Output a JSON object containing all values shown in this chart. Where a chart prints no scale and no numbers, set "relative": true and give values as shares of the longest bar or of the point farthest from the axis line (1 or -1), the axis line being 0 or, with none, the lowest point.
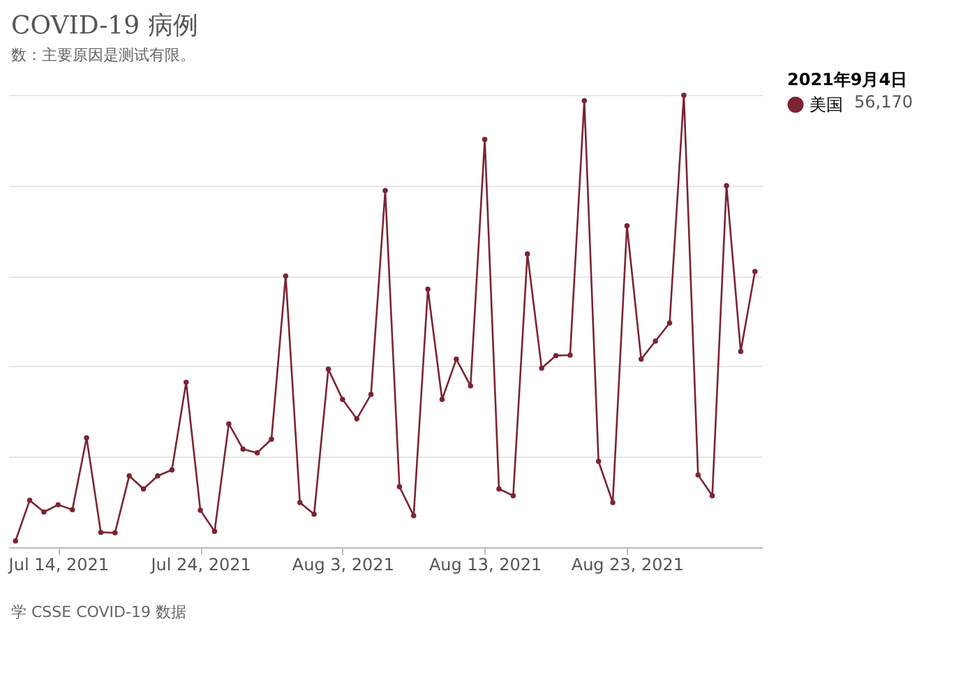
{
  "chart_data": {
    "type": "line",
    "title": "COVID-19 病例",
    "subtitle": "数：主要原因是测试有限。",
    "relative": true,
    "grid": "y",
    "legend": "top right",
    "legend_title": "2021年9月4日",
    "marker": "circle",
    "annotations": [
      "56,170",
      "学 CSSE COVID-19 数据"
    ],
    "xlim": [
      "2021-07-10T12:00",
      "2021-09-01T12:00"
    ],
    "xticks": [
      {
        "value": "2021-07-14",
        "label": "Jul 14, 2021"
      },
      {
        "value": "2021-07-24",
        "label": "Jul 24, 2021"
      },
      {
        "value": "2021-08-03",
        "label": "Aug 3, 2021"
      },
      {
        "value": "2021-08-13",
        "label": "Aug 13, 2021"
      },
      {
        "value": "2021-08-23",
        "label": "Aug 23, 2021"
      }
    ],
    "x": [
      "2021-07-11",
      "2021-07-12",
      "2021-07-13",
      "2021-07-14",
      "2021-07-15",
      "2021-07-16",
      "2021-07-17",
      "2021-07-18",
      "2021-07-19",
      "2021-07-20",
      "2021-07-21",
      "2021-07-22",
      "2021-07-23",
      "2021-07-24",
      "2021-07-25",
      "2021-07-26",
      "2021-07-27",
      "2021-07-28",
      "2021-07-29",
      "2021-07-30",
      "2021-07-31",
      "2021-08-01",
      "2021-08-02",
      "2021-08-03",
      "2021-08-04",
      "2021-08-05",
      "2021-08-06",
      "2021-08-07",
      "2021-08-08",
      "2021-08-09",
      "2021-08-10",
      "2021-08-11",
      "2021-08-12",
      "2021-08-13",
      "2021-08-14",
      "2021-08-15",
      "2021-08-16",
      "2021-08-17",
      "2021-08-18",
      "2021-08-19",
      "2021-08-20",
      "2021-08-21",
      "2021-08-22",
      "2021-08-23",
      "2021-08-24",
      "2021-08-25",
      "2021-08-26",
      "2021-08-27",
      "2021-08-28",
      "2021-08-29",
      "2021-08-30",
      "2021-08-31",
      "2021-09-01"
    ],
    "series": [
      {
        "name": "美国",
        "color": "#7b2433",
        "values": [
          0.014,
          0.104,
          0.078,
          0.094,
          0.083,
          0.242,
          0.033,
          0.032,
          0.158,
          0.129,
          0.158,
          0.171,
          0.365,
          0.082,
          0.035,
          0.273,
          0.217,
          0.209,
          0.239,
          0.6,
          0.099,
          0.073,
          0.394,
          0.327,
          0.284,
          0.338,
          0.789,
          0.134,
          0.07,
          0.571,
          0.327,
          0.416,
          0.357,
          0.902,
          0.129,
          0.114,
          0.649,
          0.396,
          0.424,
          0.425,
          0.988,
          0.19,
          0.099,
          0.711,
          0.416,
          0.456,
          0.496,
          1,
          0.16,
          0.114,
          0.8,
          0.433,
          0.61
        ]
      }
    ]
  }
}
